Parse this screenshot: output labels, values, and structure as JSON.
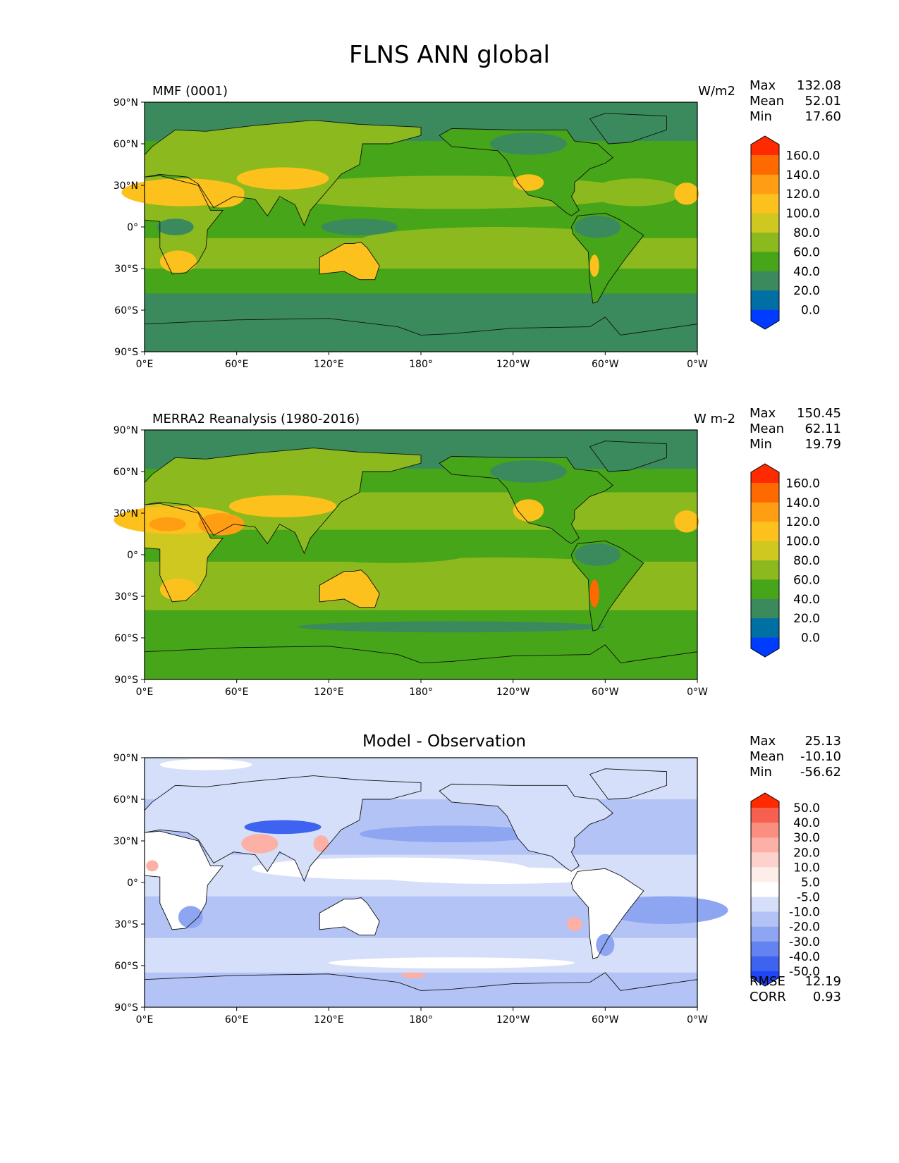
{
  "figure": {
    "title": "FLNS ANN global"
  },
  "axes": {
    "lat_ticks": [
      "90°N",
      "60°N",
      "30°N",
      "0°",
      "30°S",
      "60°S",
      "90°S"
    ],
    "lon_ticks": [
      "0°E",
      "60°E",
      "120°E",
      "180°",
      "120°W",
      "60°W",
      "0°W"
    ]
  },
  "panels": [
    {
      "title": "MMF (0001)",
      "units": "W/m2",
      "stats": [
        {
          "label": "Max",
          "value": "132.08"
        },
        {
          "label": "Mean",
          "value": "52.01"
        },
        {
          "label": "Min",
          "value": "17.60"
        }
      ],
      "colorbar": {
        "labels": [
          "160.0",
          "140.0",
          "120.0",
          "100.0",
          "80.0",
          "60.0",
          "40.0",
          "20.0",
          "0.0"
        ],
        "colors": [
          "#ff2a00",
          "#ff6a00",
          "#ff9e12",
          "#fcc11c",
          "#cfc820",
          "#8cba1e",
          "#46a518",
          "#3a8a5e",
          "#006fa3",
          "#003cff"
        ]
      }
    },
    {
      "title": "MERRA2 Reanalysis (1980-2016)",
      "units": "W m-2",
      "stats": [
        {
          "label": "Max",
          "value": "150.45"
        },
        {
          "label": "Mean",
          "value": "62.11"
        },
        {
          "label": "Min",
          "value": "19.79"
        }
      ],
      "colorbar": {
        "labels": [
          "160.0",
          "140.0",
          "120.0",
          "100.0",
          "80.0",
          "60.0",
          "40.0",
          "20.0",
          "0.0"
        ],
        "colors": [
          "#ff2a00",
          "#ff6a00",
          "#ff9e12",
          "#fcc11c",
          "#cfc820",
          "#8cba1e",
          "#46a518",
          "#3a8a5e",
          "#006fa3",
          "#003cff"
        ]
      }
    },
    {
      "title": "Model - Observation",
      "units": "",
      "stats": [
        {
          "label": "Max",
          "value": "25.13"
        },
        {
          "label": "Mean",
          "value": "-10.10"
        },
        {
          "label": "Min",
          "value": "-56.62"
        }
      ],
      "colorbar": {
        "labels": [
          "50.0",
          "40.0",
          "30.0",
          "20.0",
          "10.0",
          "5.0",
          "-5.0",
          "-10.0",
          "-20.0",
          "-30.0",
          "-40.0",
          "-50.0"
        ],
        "colors": [
          "#ff2a00",
          "#f76050",
          "#fa8f80",
          "#fcb0a6",
          "#fdd2cc",
          "#fdeeea",
          "#ffffff",
          "#d6dff9",
          "#b3c3f6",
          "#8ea5f2",
          "#6384f0",
          "#3d63f0",
          "#1f45f5"
        ]
      },
      "metrics": [
        {
          "label": "RMSE",
          "value": "12.19"
        },
        {
          "label": "CORR",
          "value": "0.93"
        }
      ]
    }
  ]
}
